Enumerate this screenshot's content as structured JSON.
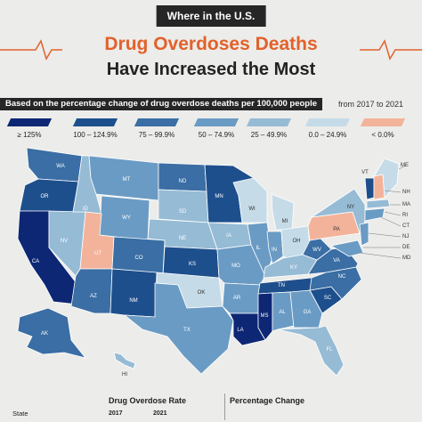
{
  "header": {
    "kicker": "Where in the U.S.",
    "title_line1": "Drug Overdoses Deaths",
    "title_line2": "Have Increased the Most",
    "subtitle": "Based on the percentage change of drug overdose deaths per 100,000 people",
    "subtitle_note": "from 2017 to 2021"
  },
  "legend": [
    {
      "label": "≥ 125%",
      "color": "#0d2775"
    },
    {
      "label": "100 – 124.9%",
      "color": "#1e4f8d"
    },
    {
      "label": "75 – 99.9%",
      "color": "#3a6ea4"
    },
    {
      "label": "50 – 74.9%",
      "color": "#6a9bc4"
    },
    {
      "label": "25 – 49.9%",
      "color": "#96bbd5"
    },
    {
      "label": "0.0 – 24.9%",
      "color": "#c5dbe8"
    },
    {
      "label": "< 0.0%",
      "color": "#f2b39a"
    }
  ],
  "map": {
    "state_labels": {
      "WA": "WA",
      "OR": "OR",
      "CA": "CA",
      "NV": "NV",
      "ID": "ID",
      "MT": "MT",
      "WY": "WY",
      "UT": "UT",
      "AZ": "AZ",
      "CO": "CO",
      "NM": "NM",
      "ND": "ND",
      "SD": "SD",
      "NE": "NE",
      "KS": "KS",
      "OK": "OK",
      "TX": "TX",
      "MN": "MN",
      "IA": "IA",
      "MO": "MO",
      "AR": "AR",
      "LA": "LA",
      "WI": "WI",
      "IL": "IL",
      "MI": "MI",
      "IN": "IN",
      "OH": "OH",
      "KY": "KY",
      "TN": "TN",
      "MS": "MS",
      "AL": "AL",
      "GA": "GA",
      "FL": "FL",
      "SC": "SC",
      "NC": "NC",
      "VA": "VA",
      "WV": "WV",
      "PA": "PA",
      "NY": "NY",
      "VT": "VT",
      "ME": "ME",
      "AK": "AK",
      "HI": "HI"
    },
    "ext_labels": [
      "ME",
      "NH",
      "MA",
      "RI",
      "CT",
      "NJ",
      "DE",
      "MD"
    ]
  },
  "table": {
    "rate_header": "Drug Overdose Rate",
    "change_header": "Percentage Change",
    "state_col": "State",
    "year1": "2017",
    "year2": "2021"
  }
}
